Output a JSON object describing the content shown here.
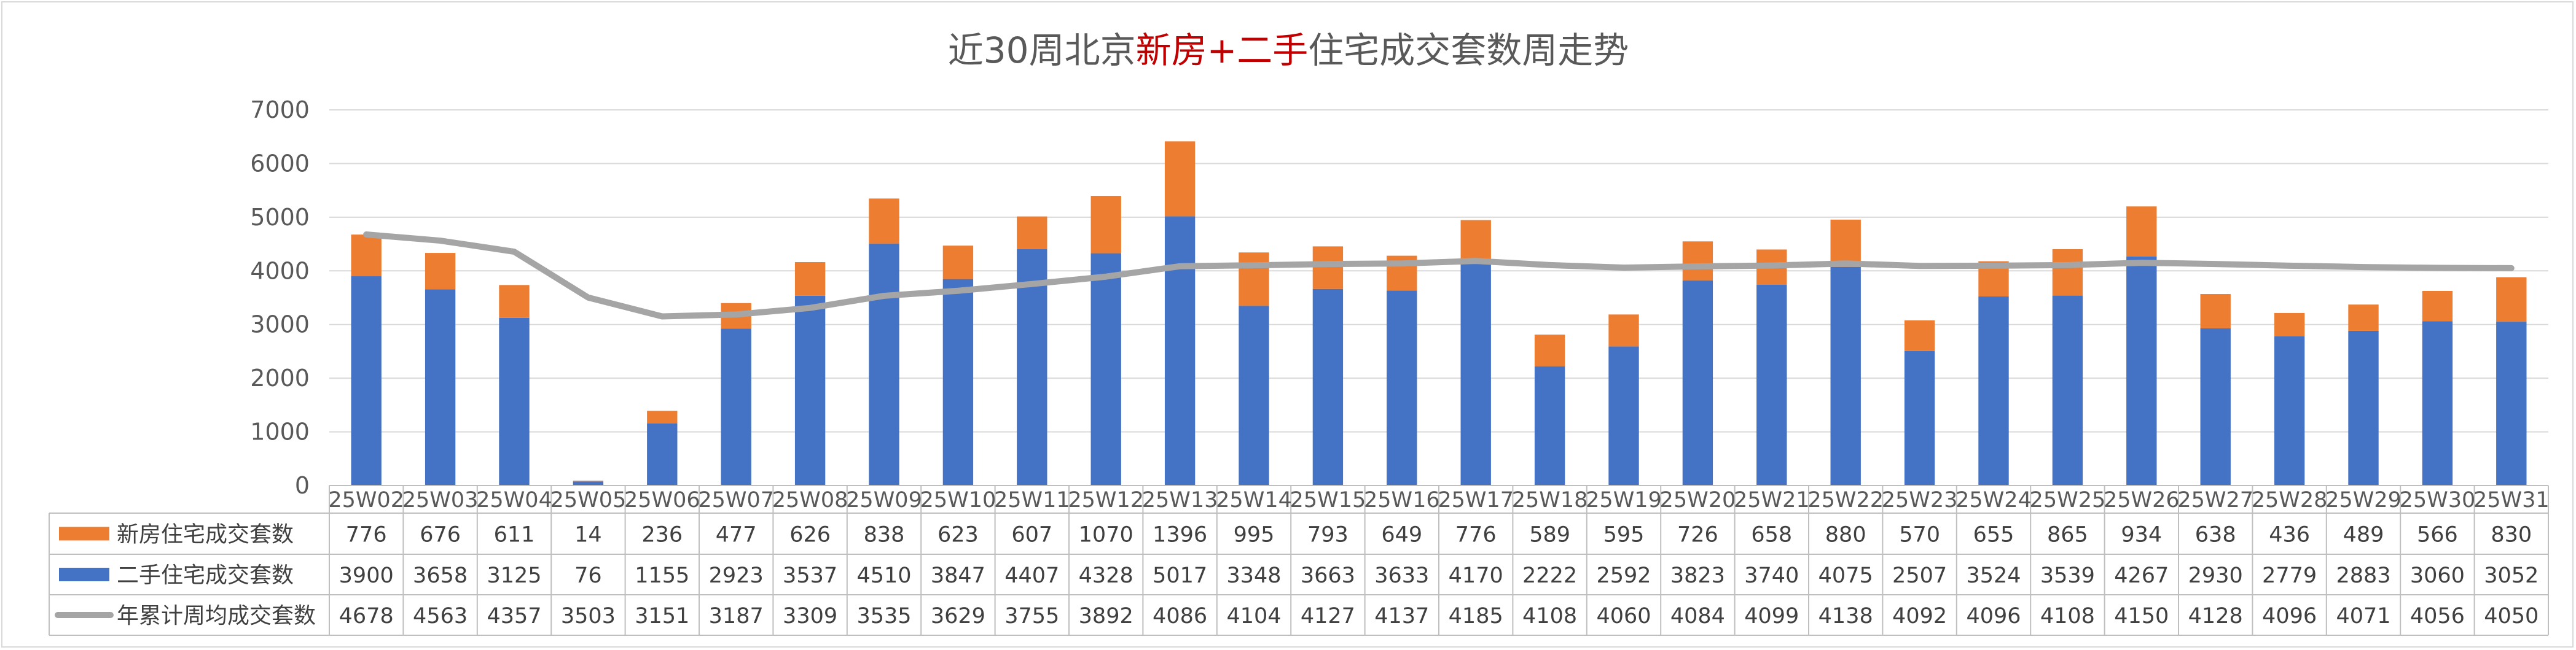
{
  "chart_data": {
    "type": "bar",
    "stacked": true,
    "title": {
      "parts": [
        {
          "text": "近30周北京",
          "color": "#595959"
        },
        {
          "text": "新房+二手",
          "color": "#c00000"
        },
        {
          "text": "住宅成交套数周走势",
          "color": "#595959"
        }
      ]
    },
    "ylim": [
      0,
      7000
    ],
    "yticks": [
      0,
      1000,
      2000,
      3000,
      4000,
      5000,
      6000,
      7000
    ],
    "grid": true,
    "legend_position": "left of data table",
    "categories": [
      "25W02",
      "25W03",
      "25W04",
      "25W05",
      "25W06",
      "25W07",
      "25W08",
      "25W09",
      "25W10",
      "25W11",
      "25W12",
      "25W13",
      "25W14",
      "25W15",
      "25W16",
      "25W17",
      "25W18",
      "25W19",
      "25W20",
      "25W21",
      "25W22",
      "25W23",
      "25W24",
      "25W25",
      "25W26",
      "25W27",
      "25W28",
      "25W29",
      "25W30",
      "25W31"
    ],
    "series": [
      {
        "name": "新房住宅成交套数",
        "kind": "bar",
        "color": "#ed7d31",
        "values": [
          776,
          676,
          611,
          14,
          236,
          477,
          626,
          838,
          623,
          607,
          1070,
          1396,
          995,
          793,
          649,
          776,
          589,
          595,
          726,
          658,
          880,
          570,
          655,
          865,
          934,
          638,
          436,
          489,
          566,
          830
        ]
      },
      {
        "name": "二手住宅成交套数",
        "kind": "bar",
        "color": "#4472c4",
        "values": [
          3900,
          3658,
          3125,
          76,
          1155,
          2923,
          3537,
          4510,
          3847,
          4407,
          4328,
          5017,
          3348,
          3663,
          3633,
          4170,
          2222,
          2592,
          3823,
          3740,
          4075,
          2507,
          3524,
          3539,
          4267,
          2930,
          2779,
          2883,
          3060,
          3052
        ]
      },
      {
        "name": "年累计周均成交套数",
        "kind": "line",
        "color": "#a5a5a5",
        "values": [
          4678,
          4563,
          4357,
          3503,
          3151,
          3187,
          3309,
          3535,
          3629,
          3755,
          3892,
          4086,
          4104,
          4127,
          4137,
          4185,
          4108,
          4060,
          4084,
          4099,
          4138,
          4092,
          4096,
          4108,
          4150,
          4128,
          4096,
          4071,
          4056,
          4050
        ]
      }
    ]
  }
}
